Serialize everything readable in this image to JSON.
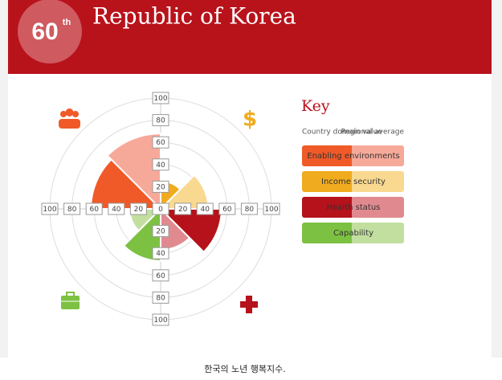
{
  "chart_data": {
    "type": "polar",
    "rank": "60",
    "rank_suffix": "th",
    "title": "Republic of Korea",
    "key_title": "Key",
    "key_headers": [
      "Country domain value",
      "Regional average"
    ],
    "rlim": [
      0,
      100
    ],
    "rticks": [
      0,
      20,
      40,
      60,
      80,
      100
    ],
    "grid": true,
    "series": [
      {
        "name": "Enabling environments",
        "color": "#f05a28",
        "light_color": "#f7a999",
        "values": [
          63,
          68
        ]
      },
      {
        "name": "Income security",
        "color": "#f0ab1e",
        "light_color": "#f9d88f",
        "values": [
          25,
          43
        ]
      },
      {
        "name": "Health status",
        "color": "#b5121b",
        "light_color": "#e08a90",
        "values": [
          55,
          37
        ]
      },
      {
        "name": "Capability",
        "color": "#7dc142",
        "light_color": "#c2df9f",
        "values": [
          47,
          28
        ]
      }
    ]
  },
  "caption": "한국의 노년 행복지수."
}
